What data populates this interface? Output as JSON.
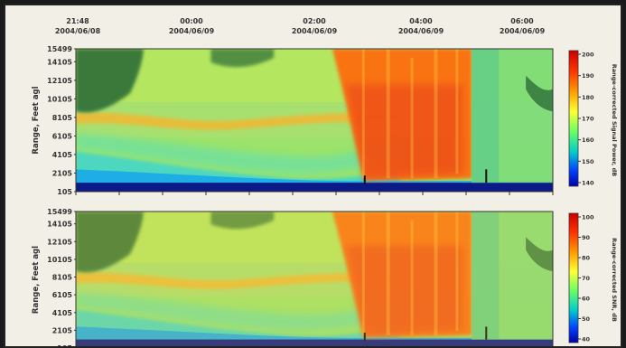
{
  "chart_data": [
    {
      "type": "heatmap",
      "time_labels": [
        {
          "time": "21:48",
          "date": "2004/06/08"
        },
        {
          "time": "00:00",
          "date": "2004/06/09"
        },
        {
          "time": "02:00",
          "date": "2004/06/09"
        },
        {
          "time": "04:00",
          "date": "2004/06/09"
        },
        {
          "time": "06:00",
          "date": "2004/06/09"
        }
      ],
      "ylabel": "Range, Feet agl",
      "y_ticks": [
        "15499",
        "14105",
        "12105",
        "10105",
        "8105",
        "6105",
        "4105",
        "2105",
        "105"
      ],
      "ylim": [
        105,
        15499
      ],
      "colorbar_label": "Range-corrected Signal Power, dB",
      "colorbar_ticks": [
        "200",
        "190",
        "180",
        "170",
        "160",
        "150",
        "140"
      ],
      "colorbar_range": [
        140,
        200
      ]
    },
    {
      "type": "heatmap",
      "ylabel": "Range, Feet agl",
      "y_ticks": [
        "15499",
        "14105",
        "12105",
        "10105",
        "8105",
        "6105",
        "4105",
        "2105",
        "105"
      ],
      "ylim": [
        105,
        15499
      ],
      "colorbar_label": "Range-corrected SNR, dB",
      "colorbar_ticks": [
        "100",
        "90",
        "80",
        "70",
        "60",
        "50",
        "40"
      ],
      "colorbar_range": [
        40,
        100
      ]
    }
  ]
}
